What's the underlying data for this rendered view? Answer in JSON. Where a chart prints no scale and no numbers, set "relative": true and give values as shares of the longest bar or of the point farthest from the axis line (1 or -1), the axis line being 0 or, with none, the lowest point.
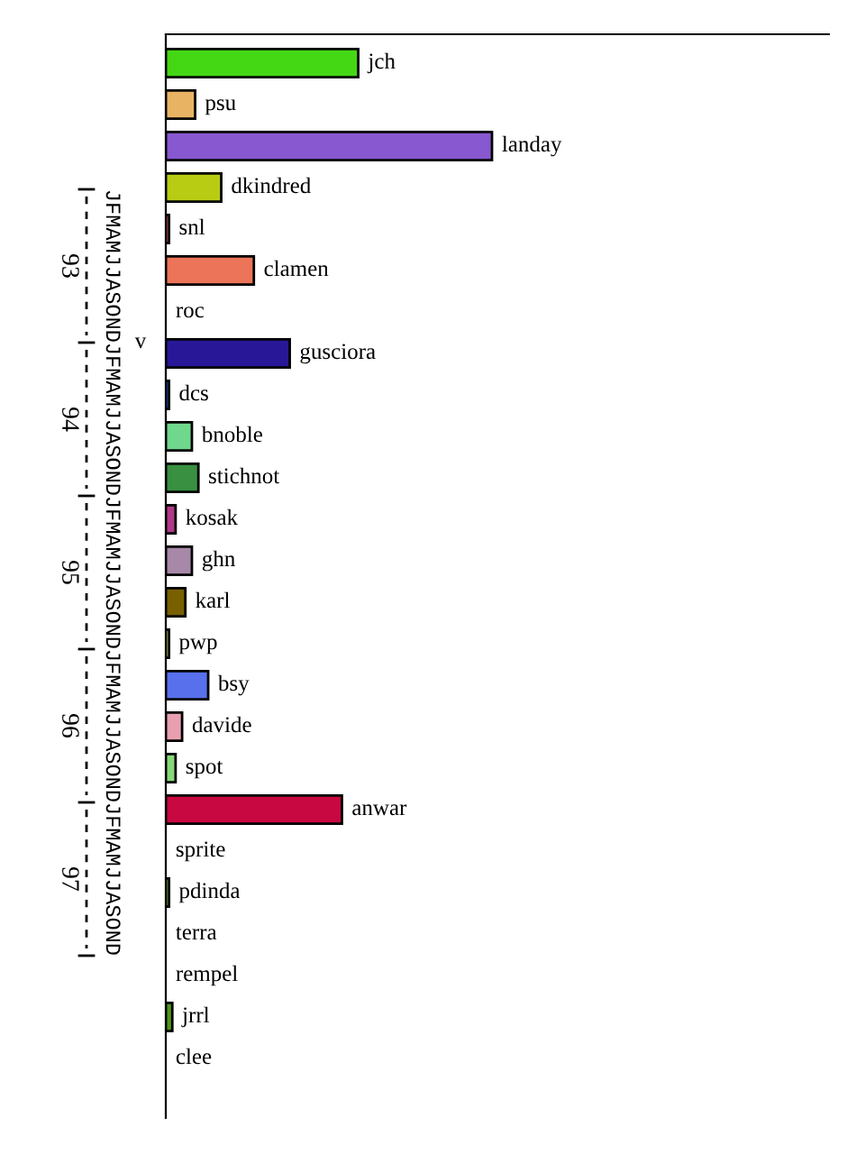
{
  "chart_data": {
    "type": "bar",
    "orientation": "horizontal",
    "relative": true,
    "categories": [
      "jch",
      "psu",
      "landay",
      "dkindred",
      "snl",
      "clamen",
      "roc",
      "gusciora",
      "dcs",
      "bnoble",
      "stichnot",
      "kosak",
      "ghn",
      "karl",
      "pwp",
      "bsy",
      "davide",
      "spot",
      "anwar",
      "sprite",
      "pdinda",
      "terra",
      "rempel",
      "jrrl",
      "clee"
    ],
    "values": [
      0.59,
      0.09,
      1,
      0.17,
      0.01,
      0.27,
      0,
      0.38,
      0.01,
      0.08,
      0.1,
      0.03,
      0.08,
      0.06,
      0.01,
      0.13,
      0.05,
      0.03,
      0.54,
      0,
      0.01,
      0,
      0,
      0.02,
      0
    ],
    "colors": [
      "#44d814",
      "#e8b464",
      "#8858d0",
      "#b8cc14",
      "#e06070",
      "#ec7458",
      "#ffffff",
      "#281898",
      "#2060d0",
      "#70d88c",
      "#389040",
      "#b03888",
      "#a888a8",
      "#786000",
      "#c8e870",
      "#5870ec",
      "#e8a0b0",
      "#88d878",
      "#c80840",
      "#ffffff",
      "#80c040",
      "#ffffff",
      "#ffffff",
      "#509818",
      "#ffffff"
    ],
    "annotations": [
      "93",
      "94",
      "95",
      "96",
      "97",
      "JFMAMJJASONDJFMAMJJASONDJFMAMJJASONDJFMAMJJASONDJFMAMJJASOND",
      "v"
    ],
    "legend": false
  }
}
